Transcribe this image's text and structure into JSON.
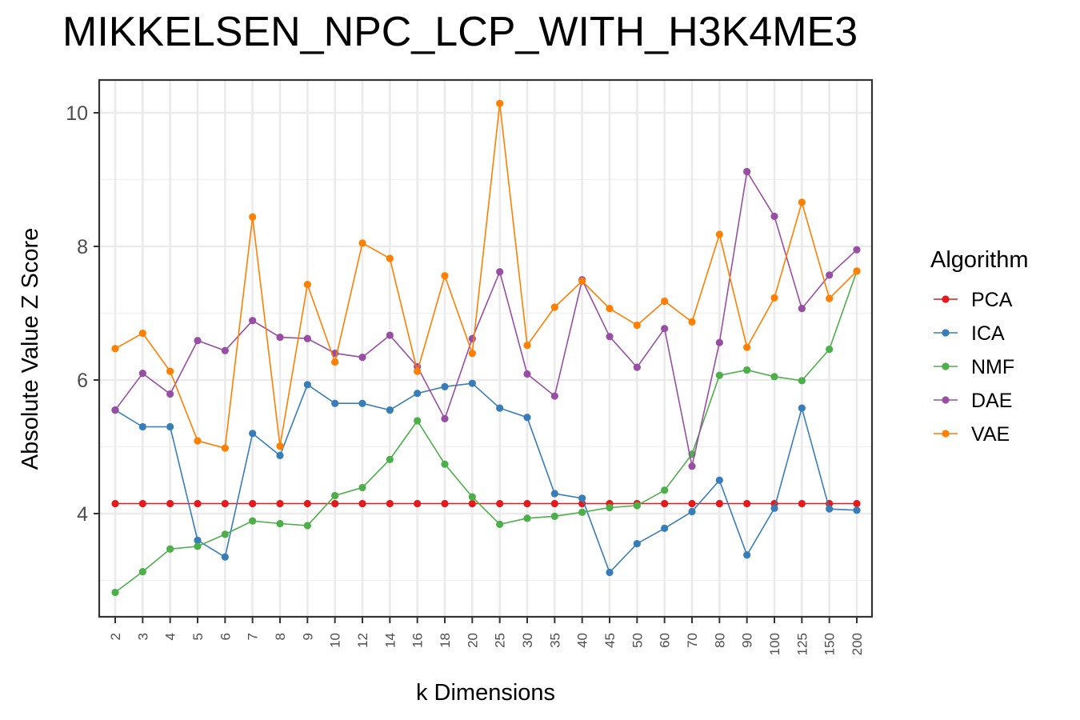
{
  "chart_data": {
    "type": "line",
    "title": "MIKKELSEN_NPC_LCP_WITH_H3K4ME3",
    "xlabel": "k Dimensions",
    "ylabel": "Absolute Value Z Score",
    "categories": [
      "2",
      "3",
      "4",
      "5",
      "6",
      "7",
      "8",
      "9",
      "10",
      "12",
      "14",
      "16",
      "18",
      "20",
      "25",
      "30",
      "35",
      "40",
      "45",
      "50",
      "60",
      "70",
      "80",
      "90",
      "100",
      "125",
      "150",
      "200"
    ],
    "ylim": [
      2.5,
      10.5
    ],
    "y_ticks": [
      4,
      6,
      8,
      10
    ],
    "y_tick_labels": [
      "4",
      "6",
      "8",
      "10"
    ],
    "grid": true,
    "legend_title": "Algorithm",
    "legend_position": "right",
    "series": [
      {
        "name": "PCA",
        "color": "#e41a1c",
        "values": [
          4.15,
          4.15,
          4.15,
          4.15,
          4.15,
          4.15,
          4.15,
          4.15,
          4.15,
          4.15,
          4.15,
          4.15,
          4.15,
          4.15,
          4.15,
          4.15,
          4.15,
          4.15,
          4.15,
          4.15,
          4.15,
          4.15,
          4.15,
          4.15,
          4.15,
          4.15,
          4.15,
          4.15
        ]
      },
      {
        "name": "ICA",
        "color": "#377eb8",
        "values": [
          5.55,
          5.3,
          5.3,
          3.6,
          3.35,
          5.2,
          4.87,
          5.93,
          5.65,
          5.65,
          5.55,
          5.8,
          5.9,
          5.95,
          5.58,
          5.44,
          4.3,
          4.23,
          3.12,
          3.55,
          3.78,
          4.03,
          4.5,
          3.38,
          4.08,
          5.58,
          4.07,
          4.05
        ]
      },
      {
        "name": "NMF",
        "color": "#4daf4a",
        "values": [
          2.82,
          3.13,
          3.47,
          3.51,
          3.69,
          3.89,
          3.85,
          3.82,
          4.27,
          4.39,
          4.81,
          5.39,
          4.74,
          4.25,
          3.84,
          3.93,
          3.96,
          4.02,
          4.09,
          4.12,
          4.35,
          4.89,
          6.07,
          6.15,
          6.05,
          5.99,
          6.46,
          7.63
        ]
      },
      {
        "name": "DAE",
        "color": "#984ea3",
        "values": [
          5.55,
          6.1,
          5.79,
          6.59,
          6.44,
          6.89,
          6.64,
          6.62,
          6.4,
          6.34,
          6.67,
          6.2,
          5.42,
          6.62,
          7.62,
          6.09,
          5.76,
          7.5,
          6.65,
          6.19,
          6.77,
          4.71,
          6.56,
          9.12,
          8.45,
          7.07,
          7.57,
          7.95
        ]
      },
      {
        "name": "VAE",
        "color": "#ff7f00",
        "values": [
          6.47,
          6.7,
          6.13,
          5.09,
          4.98,
          8.44,
          5.01,
          7.43,
          6.27,
          8.05,
          7.82,
          6.13,
          7.56,
          6.4,
          10.14,
          6.52,
          7.09,
          7.48,
          7.07,
          6.82,
          7.18,
          6.87,
          8.18,
          6.49,
          7.23,
          8.66,
          7.22,
          7.63
        ]
      }
    ]
  }
}
